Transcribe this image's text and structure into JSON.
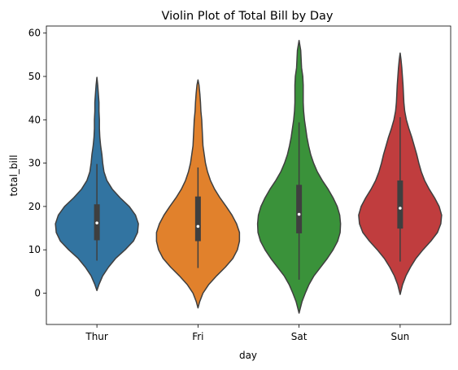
{
  "chart_data": {
    "type": "violin",
    "title": "Violin Plot of Total Bill by Day",
    "xlabel": "day",
    "ylabel": "total_bill",
    "ylim": [
      -7.5,
      62
    ],
    "yticks": [
      0,
      10,
      20,
      30,
      40,
      50,
      60
    ],
    "grid": false,
    "categories": [
      "Thur",
      "Fri",
      "Sat",
      "Sun"
    ],
    "colors": [
      "#3274a1",
      "#e1812c",
      "#3a923a",
      "#c03d3e"
    ],
    "series": [
      {
        "category": "Thur",
        "q1": 12.2,
        "median": 16.2,
        "q3": 20.5,
        "whisker_low": 7.5,
        "whisker_high": 29.8,
        "density": [
          [
            0.6,
            0.0
          ],
          [
            2,
            0.05
          ],
          [
            4,
            0.14
          ],
          [
            6,
            0.28
          ],
          [
            8,
            0.45
          ],
          [
            10,
            0.68
          ],
          [
            12,
            0.88
          ],
          [
            14,
            0.98
          ],
          [
            16,
            1.0
          ],
          [
            18,
            0.93
          ],
          [
            20,
            0.78
          ],
          [
            22,
            0.56
          ],
          [
            24,
            0.37
          ],
          [
            26,
            0.24
          ],
          [
            28,
            0.17
          ],
          [
            30,
            0.14
          ],
          [
            32,
            0.12
          ],
          [
            34,
            0.09
          ],
          [
            36,
            0.07
          ],
          [
            38,
            0.06
          ],
          [
            40,
            0.06
          ],
          [
            42,
            0.05
          ],
          [
            44,
            0.05
          ],
          [
            46,
            0.035
          ],
          [
            48,
            0.02
          ],
          [
            49.8,
            0.0
          ]
        ]
      },
      {
        "category": "Fri",
        "q1": 12.0,
        "median": 15.4,
        "q3": 22.3,
        "whisker_low": 5.8,
        "whisker_high": 29.0,
        "density": [
          [
            -3.4,
            0.0
          ],
          [
            -2,
            0.04
          ],
          [
            0,
            0.12
          ],
          [
            2,
            0.26
          ],
          [
            4,
            0.45
          ],
          [
            6,
            0.66
          ],
          [
            8,
            0.84
          ],
          [
            10,
            0.95
          ],
          [
            12,
            1.0
          ],
          [
            14,
            1.0
          ],
          [
            16,
            0.93
          ],
          [
            18,
            0.82
          ],
          [
            20,
            0.68
          ],
          [
            22,
            0.53
          ],
          [
            24,
            0.4
          ],
          [
            26,
            0.3
          ],
          [
            28,
            0.23
          ],
          [
            30,
            0.18
          ],
          [
            32,
            0.15
          ],
          [
            34,
            0.12
          ],
          [
            36,
            0.11
          ],
          [
            38,
            0.1
          ],
          [
            40,
            0.09
          ],
          [
            42,
            0.07
          ],
          [
            44,
            0.06
          ],
          [
            46,
            0.045
          ],
          [
            48,
            0.025
          ],
          [
            49.2,
            0.0
          ]
        ]
      },
      {
        "category": "Sat",
        "q1": 13.8,
        "median": 18.2,
        "q3": 25.0,
        "whisker_low": 3.1,
        "whisker_high": 39.4,
        "density": [
          [
            -4.6,
            0.0
          ],
          [
            -2,
            0.07
          ],
          [
            0,
            0.15
          ],
          [
            2,
            0.24
          ],
          [
            4,
            0.36
          ],
          [
            6,
            0.52
          ],
          [
            8,
            0.68
          ],
          [
            10,
            0.82
          ],
          [
            12,
            0.93
          ],
          [
            14,
            0.99
          ],
          [
            16,
            1.0
          ],
          [
            18,
            0.98
          ],
          [
            20,
            0.92
          ],
          [
            22,
            0.82
          ],
          [
            24,
            0.7
          ],
          [
            26,
            0.56
          ],
          [
            28,
            0.44
          ],
          [
            30,
            0.35
          ],
          [
            32,
            0.28
          ],
          [
            34,
            0.23
          ],
          [
            36,
            0.19
          ],
          [
            38,
            0.16
          ],
          [
            40,
            0.13
          ],
          [
            42,
            0.11
          ],
          [
            44,
            0.1
          ],
          [
            46,
            0.1
          ],
          [
            48,
            0.1
          ],
          [
            50,
            0.09
          ],
          [
            52,
            0.06
          ],
          [
            54,
            0.05
          ],
          [
            56,
            0.04
          ],
          [
            58.3,
            0.0
          ]
        ]
      },
      {
        "category": "Sun",
        "q1": 14.9,
        "median": 19.6,
        "q3": 26.0,
        "whisker_low": 7.3,
        "whisker_high": 40.6,
        "density": [
          [
            -0.3,
            0.0
          ],
          [
            2,
            0.06
          ],
          [
            4,
            0.14
          ],
          [
            6,
            0.25
          ],
          [
            8,
            0.38
          ],
          [
            10,
            0.55
          ],
          [
            12,
            0.74
          ],
          [
            14,
            0.9
          ],
          [
            16,
            0.98
          ],
          [
            18,
            1.0
          ],
          [
            20,
            0.94
          ],
          [
            22,
            0.83
          ],
          [
            24,
            0.7
          ],
          [
            26,
            0.59
          ],
          [
            28,
            0.51
          ],
          [
            30,
            0.45
          ],
          [
            32,
            0.4
          ],
          [
            34,
            0.34
          ],
          [
            36,
            0.28
          ],
          [
            38,
            0.21
          ],
          [
            40,
            0.15
          ],
          [
            42,
            0.11
          ],
          [
            44,
            0.09
          ],
          [
            46,
            0.08
          ],
          [
            48,
            0.07
          ],
          [
            50,
            0.055
          ],
          [
            52,
            0.04
          ],
          [
            54,
            0.02
          ],
          [
            55.4,
            0.0
          ]
        ]
      }
    ]
  }
}
